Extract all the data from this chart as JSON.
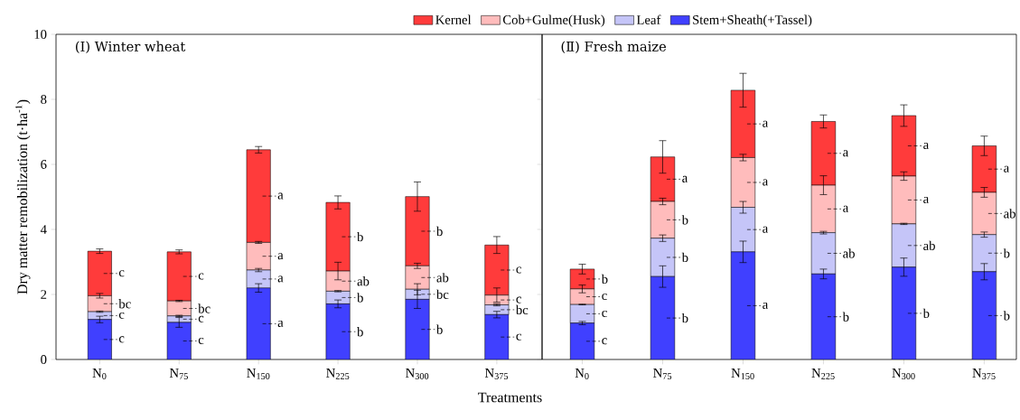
{
  "chart_data": [
    {
      "type": "bar",
      "stacked": true,
      "title": "(Ⅰ) Winter wheat",
      "xlabel": "Treatments",
      "ylabel": "Dry matter remobilization (t·ha$^{-1}$)",
      "legend": "top",
      "categories": [
        "N$_{0}$",
        "N$_{75}$",
        "N$_{150}$",
        "N$_{225}$",
        "N$_{300}$",
        "N$_{375}$"
      ],
      "ylim": [
        0,
        10
      ],
      "yticks": [
        0,
        2,
        4,
        6,
        8,
        10
      ],
      "series": [
        {
          "name": "Stem+Sheath(+Tassel)",
          "color": "#4040ff",
          "values": [
            1.23,
            1.14,
            2.2,
            1.71,
            1.85,
            1.38
          ],
          "errors": [
            0.1,
            0.15,
            0.13,
            0.12,
            0.28,
            0.1
          ]
        },
        {
          "name": "Leaf",
          "color": "#c5c5f8",
          "values": [
            0.24,
            0.2,
            0.55,
            0.39,
            0.31,
            0.3
          ],
          "errors": [
            0.02,
            0.02,
            0.05,
            0.02,
            0.17,
            0.03
          ]
        },
        {
          "name": "Cob+Gulme(Husk)",
          "color": "#ffbcbc",
          "values": [
            0.49,
            0.46,
            0.85,
            0.62,
            0.72,
            0.3
          ],
          "errors": [
            0.07,
            0.02,
            0.03,
            0.27,
            0.08,
            0.22
          ]
        },
        {
          "name": "Kernel",
          "color": "#ff3b3b",
          "values": [
            1.37,
            1.51,
            2.85,
            2.11,
            2.13,
            1.54
          ],
          "errors": [
            0.07,
            0.06,
            0.1,
            0.2,
            0.45,
            0.26
          ]
        }
      ],
      "annotations": [
        "c",
        "c",
        "bc",
        "c",
        "c",
        "c",
        "bc",
        "c",
        "a",
        "a",
        "a",
        "a",
        "b",
        "b",
        "ab",
        "b",
        "b",
        "bc",
        "ab",
        "b",
        "c",
        "bc",
        "c",
        "c"
      ]
    },
    {
      "type": "bar",
      "stacked": true,
      "title": "(Ⅱ) Fresh maize",
      "tick_labels": "x",
      "categories": [
        "N$_{0}$",
        "N$_{75}$",
        "N$_{150}$",
        "N$_{225}$",
        "N$_{300}$",
        "N$_{375}$"
      ],
      "ylim": [
        0,
        10
      ],
      "yticks": [
        0,
        2,
        4,
        6,
        8,
        10
      ],
      "series": [
        {
          "color": "#4040ff",
          "values": [
            1.12,
            2.55,
            3.31,
            2.63,
            2.84,
            2.7
          ],
          "errors": [
            0.05,
            0.33,
            0.33,
            0.15,
            0.28,
            0.25
          ]
        },
        {
          "color": "#c5c5f8",
          "values": [
            0.57,
            1.18,
            1.37,
            1.27,
            1.33,
            1.14
          ],
          "errors": [
            0.01,
            0.1,
            0.18,
            0.04,
            0.02,
            0.08
          ]
        },
        {
          "color": "#ffbcbc",
          "values": [
            0.48,
            1.13,
            1.53,
            1.46,
            1.47,
            1.3
          ],
          "errors": [
            0.12,
            0.1,
            0.1,
            0.29,
            0.13,
            0.15
          ]
        },
        {
          "color": "#ff3b3b",
          "values": [
            0.61,
            1.37,
            2.07,
            1.96,
            1.86,
            1.43
          ],
          "errors": [
            0.15,
            0.5,
            0.52,
            0.2,
            0.33,
            0.3
          ]
        }
      ],
      "annotations": [
        "c",
        "c",
        "c",
        "b",
        "b",
        "b",
        "b",
        "a",
        "a",
        "a",
        "a",
        "a",
        "b",
        "ab",
        "a",
        "a",
        "b",
        "ab",
        "a",
        "a",
        "b",
        "b",
        "ab",
        "a"
      ]
    }
  ]
}
